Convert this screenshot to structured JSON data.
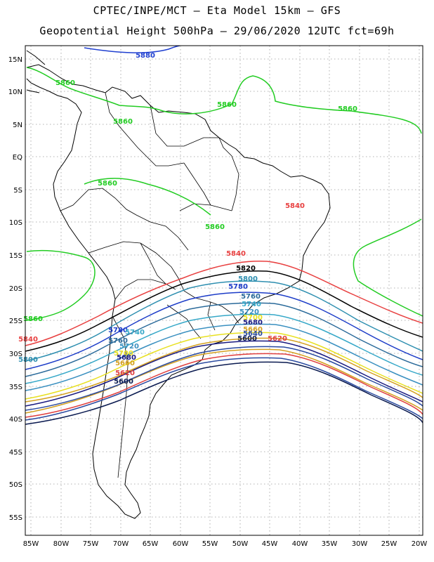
{
  "header": {
    "title_line1": "CPTEC/INPE/MCT –  Eta Model 15km – GFS",
    "title_line2": "Geopotential Height 500hPa – 29/06/2020 12UTC fct=69h"
  },
  "map": {
    "lat_ticks": [
      "15N",
      "10N",
      "5N",
      "EQ",
      "5S",
      "10S",
      "15S",
      "20S",
      "25S",
      "30S",
      "35S",
      "40S",
      "45S",
      "50S",
      "55S"
    ],
    "lon_ticks": [
      "85W",
      "80W",
      "75W",
      "70W",
      "65W",
      "60W",
      "55W",
      "50W",
      "45W",
      "40W",
      "35W",
      "30W",
      "25W",
      "20W"
    ],
    "grid": "dotted",
    "coastline_color": "#000000"
  },
  "contours": [
    {
      "label": "5880",
      "color": "#1f3fd0"
    },
    {
      "label": "5860",
      "color": "#22cc22"
    },
    {
      "label": "5840",
      "color": "#e84040"
    },
    {
      "label": "5820",
      "color": "#000000"
    },
    {
      "label": "5800",
      "color": "#2e8fb0"
    },
    {
      "label": "5780",
      "color": "#1c3cc8"
    },
    {
      "label": "5760",
      "color": "#2a6a9a"
    },
    {
      "label": "5740",
      "color": "#36a8c8"
    },
    {
      "label": "5720",
      "color": "#3a90c0"
    },
    {
      "label": "5700",
      "color": "#e8e020"
    },
    {
      "label": "5680",
      "color": "#1a1a80"
    },
    {
      "label": "5660",
      "color": "#d4a020"
    },
    {
      "label": "5640",
      "color": "#2a4aa0"
    },
    {
      "label": "5620",
      "color": "#e04040"
    },
    {
      "label": "5600",
      "color": "#0a1a50"
    }
  ],
  "contour_labels": [
    {
      "text": "5880",
      "color": "#1f3fd0"
    },
    {
      "text": "5860",
      "color": "#22cc22"
    },
    {
      "text": "5860",
      "color": "#22cc22"
    },
    {
      "text": "5860",
      "color": "#22cc22"
    },
    {
      "text": "5860",
      "color": "#22cc22"
    },
    {
      "text": "5860",
      "color": "#22cc22"
    },
    {
      "text": "5860",
      "color": "#22cc22"
    },
    {
      "text": "5860",
      "color": "#22cc22"
    },
    {
      "text": "5840",
      "color": "#e84040"
    },
    {
      "text": "5840",
      "color": "#e84040"
    },
    {
      "text": "5840",
      "color": "#e84040"
    },
    {
      "text": "5820",
      "color": "#000000"
    },
    {
      "text": "5800",
      "color": "#2e8fb0"
    },
    {
      "text": "5800",
      "color": "#2e8fb0"
    },
    {
      "text": "5780",
      "color": "#1c3cc8"
    },
    {
      "text": "5780",
      "color": "#1c3cc8"
    },
    {
      "text": "5760",
      "color": "#2a6a9a"
    },
    {
      "text": "5760",
      "color": "#2a6a9a"
    },
    {
      "text": "5740",
      "color": "#36a8c8"
    },
    {
      "text": "5740",
      "color": "#36a8c8"
    },
    {
      "text": "5720",
      "color": "#3a90c0"
    },
    {
      "text": "5720",
      "color": "#3a90c0"
    },
    {
      "text": "5700",
      "color": "#e8e020"
    },
    {
      "text": "5700",
      "color": "#e8e020"
    },
    {
      "text": "5680",
      "color": "#1a1a80"
    },
    {
      "text": "5680",
      "color": "#1a1a80"
    },
    {
      "text": "5660",
      "color": "#d4a020"
    },
    {
      "text": "5660",
      "color": "#d4a020"
    },
    {
      "text": "5640",
      "color": "#2a4aa0"
    },
    {
      "text": "5620",
      "color": "#e04040"
    },
    {
      "text": "5620",
      "color": "#e04040"
    },
    {
      "text": "5600",
      "color": "#0a1a50"
    },
    {
      "text": "5600",
      "color": "#0a1a50"
    }
  ]
}
